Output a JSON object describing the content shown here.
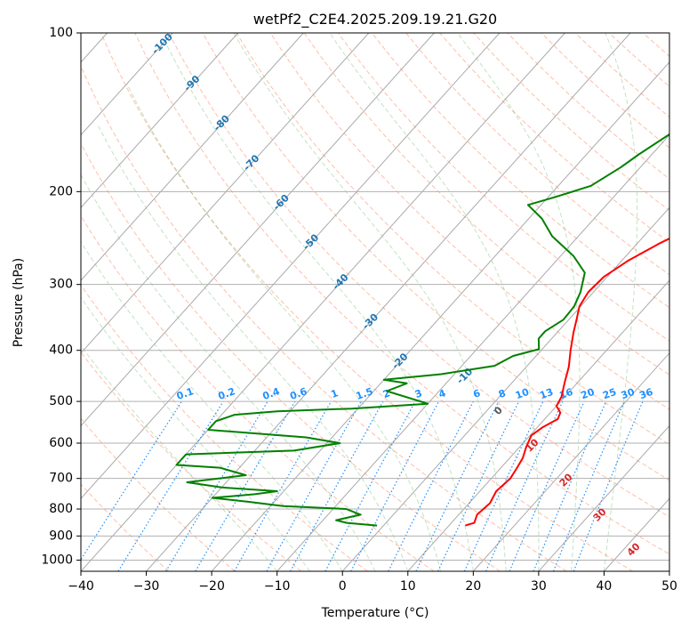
{
  "chart_data": {
    "type": "line",
    "title": "wetPf2_C2E4.2025.209.19.21.G20",
    "xlabel": "Temperature (°C)",
    "ylabel": "Pressure (hPa)",
    "xlim": [
      -40,
      50
    ],
    "ylim": [
      1050,
      100
    ],
    "y_scale": "log",
    "grid": true,
    "x_ticks": [
      -40,
      -30,
      -20,
      -10,
      0,
      10,
      20,
      30,
      40,
      50
    ],
    "y_ticks": [
      100,
      200,
      300,
      400,
      500,
      600,
      700,
      800,
      900,
      1000
    ],
    "skew_isotherm_labels": [
      "-100",
      "-90",
      "-80",
      "-70",
      "-60",
      "-50",
      "-40",
      "-30",
      "-20",
      "-10",
      "0",
      "10",
      "20",
      "30",
      "40"
    ],
    "mixing_ratio_labels": [
      "0.1",
      "0.2",
      "0.4",
      "0.6",
      "1",
      "1.5",
      "2",
      "3",
      "4",
      "6",
      "8",
      "10",
      "13",
      "16",
      "20",
      "25",
      "30",
      "36"
    ],
    "colors": {
      "temperature": "#ff0000",
      "dewpoint": "#008000",
      "isotherm_label_cold": "#1f77b4",
      "isotherm_label_warm": "#d62728",
      "mixing_ratio": "#1e90ff",
      "dry_adiabat": "#ffa07a",
      "moist_adiabat": "#90c090"
    },
    "series": [
      {
        "key": "temperature",
        "points": [
          [
            12.5,
            860
          ],
          [
            13.5,
            850
          ],
          [
            12.8,
            820
          ],
          [
            13.2,
            780
          ],
          [
            12.5,
            740
          ],
          [
            12.9,
            700
          ],
          [
            12.5,
            670
          ],
          [
            12.0,
            640
          ],
          [
            11.0,
            610
          ],
          [
            10.2,
            580
          ],
          [
            10.8,
            560
          ],
          [
            12.0,
            540
          ],
          [
            11.5,
            525
          ],
          [
            10.0,
            510
          ],
          [
            9.5,
            490
          ],
          [
            8.0,
            460
          ],
          [
            6.5,
            430
          ],
          [
            4.5,
            400
          ],
          [
            2.5,
            370
          ],
          [
            1.2,
            350
          ],
          [
            -0.2,
            330
          ],
          [
            -0.8,
            310
          ],
          [
            -0.5,
            290
          ],
          [
            1.0,
            270
          ],
          [
            3.5,
            250
          ],
          [
            6.0,
            235
          ],
          [
            8.5,
            220
          ],
          [
            9.8,
            210
          ],
          [
            9.8,
            200
          ],
          [
            10.2,
            180
          ],
          [
            10.5,
            160
          ],
          [
            11.0,
            140
          ],
          [
            11.5,
            120
          ],
          [
            11.0,
            100
          ]
        ]
      },
      {
        "key": "dewpoint",
        "points": [
          [
            -1,
            860
          ],
          [
            -6,
            850
          ],
          [
            -8,
            840
          ],
          [
            -5,
            820
          ],
          [
            -8,
            800
          ],
          [
            -18,
            790
          ],
          [
            -24,
            775
          ],
          [
            -30,
            762
          ],
          [
            -24,
            750
          ],
          [
            -21,
            740
          ],
          [
            -30,
            728
          ],
          [
            -36,
            712
          ],
          [
            -28,
            690
          ],
          [
            -33,
            668
          ],
          [
            -40,
            660
          ],
          [
            -40,
            630
          ],
          [
            -24,
            620
          ],
          [
            -18,
            600
          ],
          [
            -24,
            585
          ],
          [
            -40,
            566
          ],
          [
            -40,
            545
          ],
          [
            -38,
            530
          ],
          [
            -32,
            522
          ],
          [
            -21,
            516
          ],
          [
            -10,
            505
          ],
          [
            -18,
            478
          ],
          [
            -16,
            462
          ],
          [
            -20,
            455
          ],
          [
            -12,
            444
          ],
          [
            -5,
            428
          ],
          [
            -3.5,
            410
          ],
          [
            -0.5,
            398
          ],
          [
            -2,
            380
          ],
          [
            -2,
            368
          ],
          [
            -0.8,
            350
          ],
          [
            -1,
            330
          ],
          [
            -2,
            310
          ],
          [
            -4,
            285
          ],
          [
            -8,
            265
          ],
          [
            -14,
            243
          ],
          [
            -18,
            225
          ],
          [
            -22,
            212
          ],
          [
            -19,
            205
          ],
          [
            -15,
            195
          ],
          [
            -13,
            180
          ],
          [
            -12,
            170
          ],
          [
            -10,
            155
          ],
          [
            -8,
            140
          ],
          [
            -4,
            125
          ],
          [
            0,
            110
          ],
          [
            2,
            100
          ]
        ]
      }
    ]
  }
}
